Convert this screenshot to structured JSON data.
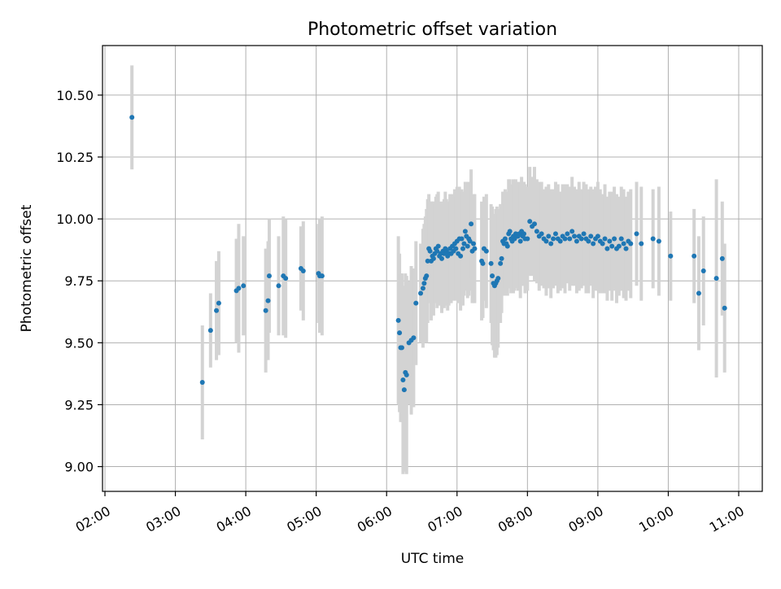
{
  "chart_data": {
    "type": "scatter",
    "title": "Photometric offset variation",
    "xlabel": "UTC time",
    "ylabel": "Photometric offset",
    "xlim": [
      "02:00",
      "11:00"
    ],
    "ylim": [
      8.9,
      10.7
    ],
    "x_ticks": [
      "02:00",
      "03:00",
      "04:00",
      "05:00",
      "06:00",
      "07:00",
      "08:00",
      "09:00",
      "10:00",
      "11:00"
    ],
    "y_ticks": [
      "9.00",
      "9.25",
      "9.50",
      "9.75",
      "10.00",
      "10.25",
      "10.50"
    ],
    "grid": true,
    "colors": {
      "point": "#1f77b4",
      "errorbar": "#d3d3d3",
      "grid": "#b0b0b0"
    },
    "series": [
      {
        "points": [
          [
            "02:23",
            10.41,
            0.21
          ],
          [
            "03:23",
            9.34,
            0.23
          ],
          [
            "03:30",
            9.55,
            0.15
          ],
          [
            "03:35",
            9.63,
            0.2
          ],
          [
            "03:37",
            9.66,
            0.21
          ],
          [
            "03:52",
            9.71,
            0.21
          ],
          [
            "03:54",
            9.72,
            0.26
          ],
          [
            "03:58",
            9.73,
            0.2
          ],
          [
            "04:17",
            9.63,
            0.25
          ],
          [
            "04:19",
            9.67,
            0.24
          ],
          [
            "04:20",
            9.77,
            0.23
          ],
          [
            "04:28",
            9.73,
            0.2
          ],
          [
            "04:32",
            9.77,
            0.24
          ],
          [
            "04:34",
            9.76,
            0.24
          ],
          [
            "04:47",
            9.8,
            0.17
          ],
          [
            "04:49",
            9.79,
            0.2
          ],
          [
            "05:02",
            9.78,
            0.2
          ],
          [
            "05:03",
            9.77,
            0.23
          ],
          [
            "05:05",
            9.77,
            0.24
          ],
          [
            "06:10",
            9.59,
            0.34
          ],
          [
            "06:11",
            9.54,
            0.32
          ],
          [
            "06:12",
            9.48,
            0.3
          ],
          [
            "06:13",
            9.48,
            0.3
          ],
          [
            "06:14",
            9.35,
            0.38
          ],
          [
            "06:15",
            9.31,
            0.33
          ],
          [
            "06:16",
            9.38,
            0.4
          ],
          [
            "06:17",
            9.37,
            0.4
          ],
          [
            "06:19",
            9.5,
            0.25
          ],
          [
            "06:21",
            9.51,
            0.3
          ],
          [
            "06:23",
            9.52,
            0.28
          ],
          [
            "06:25",
            9.66,
            0.25
          ],
          [
            "06:29",
            9.7,
            0.2
          ],
          [
            "06:31",
            9.72,
            0.24
          ],
          [
            "06:32",
            9.74,
            0.24
          ],
          [
            "06:33",
            9.76,
            0.25
          ],
          [
            "06:34",
            9.77,
            0.27
          ],
          [
            "06:35",
            9.83,
            0.25
          ],
          [
            "06:36",
            9.88,
            0.22
          ],
          [
            "06:37",
            9.87,
            0.2
          ],
          [
            "06:38",
            9.83,
            0.24
          ],
          [
            "06:39",
            9.85,
            0.22
          ],
          [
            "06:40",
            9.84,
            0.23
          ],
          [
            "06:41",
            9.86,
            0.2
          ],
          [
            "06:42",
            9.88,
            0.21
          ],
          [
            "06:43",
            9.87,
            0.23
          ],
          [
            "06:44",
            9.89,
            0.22
          ],
          [
            "06:45",
            9.85,
            0.2
          ],
          [
            "06:46",
            9.86,
            0.21
          ],
          [
            "06:47",
            9.84,
            0.22
          ],
          [
            "06:48",
            9.87,
            0.2
          ],
          [
            "06:49",
            9.86,
            0.22
          ],
          [
            "06:50",
            9.88,
            0.23
          ],
          [
            "06:51",
            9.87,
            0.21
          ],
          [
            "06:52",
            9.85,
            0.22
          ],
          [
            "06:53",
            9.86,
            0.21
          ],
          [
            "06:54",
            9.88,
            0.22
          ],
          [
            "06:55",
            9.86,
            0.2
          ],
          [
            "06:56",
            9.89,
            0.21
          ],
          [
            "06:57",
            9.87,
            0.2
          ],
          [
            "06:58",
            9.9,
            0.22
          ],
          [
            "06:59",
            9.88,
            0.21
          ],
          [
            "07:00",
            9.91,
            0.22
          ],
          [
            "07:01",
            9.86,
            0.2
          ],
          [
            "07:02",
            9.92,
            0.21
          ],
          [
            "07:03",
            9.85,
            0.22
          ],
          [
            "07:04",
            9.92,
            0.2
          ],
          [
            "07:05",
            9.88,
            0.23
          ],
          [
            "07:06",
            9.9,
            0.21
          ],
          [
            "07:07",
            9.95,
            0.2
          ],
          [
            "07:08",
            9.93,
            0.22
          ],
          [
            "07:09",
            9.89,
            0.21
          ],
          [
            "07:10",
            9.92,
            0.23
          ],
          [
            "07:11",
            9.91,
            0.2
          ],
          [
            "07:12",
            9.98,
            0.22
          ],
          [
            "07:13",
            9.87,
            0.21
          ],
          [
            "07:14",
            9.9,
            0.2
          ],
          [
            "07:15",
            9.88,
            0.22
          ],
          [
            "07:21",
            9.83,
            0.24
          ],
          [
            "07:22",
            9.82,
            0.22
          ],
          [
            "07:23",
            9.88,
            0.21
          ],
          [
            "07:25",
            9.87,
            0.23
          ],
          [
            "07:29",
            9.82,
            0.24
          ],
          [
            "07:30",
            9.77,
            0.28
          ],
          [
            "07:31",
            9.74,
            0.27
          ],
          [
            "07:32",
            9.73,
            0.29
          ],
          [
            "07:33",
            9.74,
            0.3
          ],
          [
            "07:34",
            9.75,
            0.3
          ],
          [
            "07:35",
            9.76,
            0.28
          ],
          [
            "07:37",
            9.82,
            0.24
          ],
          [
            "07:38",
            9.84,
            0.22
          ],
          [
            "07:39",
            9.91,
            0.2
          ],
          [
            "07:40",
            9.9,
            0.21
          ],
          [
            "07:41",
            9.92,
            0.2
          ],
          [
            "07:42",
            9.9,
            0.21
          ],
          [
            "07:43",
            9.89,
            0.2
          ],
          [
            "07:44",
            9.94,
            0.22
          ],
          [
            "07:45",
            9.95,
            0.21
          ],
          [
            "07:46",
            9.92,
            0.22
          ],
          [
            "07:47",
            9.91,
            0.2
          ],
          [
            "07:48",
            9.93,
            0.23
          ],
          [
            "07:49",
            9.92,
            0.21
          ],
          [
            "07:50",
            9.94,
            0.22
          ],
          [
            "07:51",
            9.93,
            0.2
          ],
          [
            "07:52",
            9.93,
            0.22
          ],
          [
            "07:53",
            9.94,
            0.21
          ],
          [
            "07:54",
            9.91,
            0.23
          ],
          [
            "07:55",
            9.95,
            0.22
          ],
          [
            "07:56",
            9.93,
            0.2
          ],
          [
            "07:57",
            9.94,
            0.21
          ],
          [
            "07:58",
            9.92,
            0.22
          ],
          [
            "08:00",
            9.92,
            0.21
          ],
          [
            "08:02",
            9.99,
            0.22
          ],
          [
            "08:04",
            9.97,
            0.2
          ],
          [
            "08:06",
            9.98,
            0.23
          ],
          [
            "08:08",
            9.95,
            0.21
          ],
          [
            "08:10",
            9.93,
            0.22
          ],
          [
            "08:12",
            9.94,
            0.21
          ],
          [
            "08:14",
            9.92,
            0.2
          ],
          [
            "08:16",
            9.91,
            0.22
          ],
          [
            "08:18",
            9.93,
            0.21
          ],
          [
            "08:20",
            9.9,
            0.22
          ],
          [
            "08:22",
            9.92,
            0.2
          ],
          [
            "08:24",
            9.94,
            0.21
          ],
          [
            "08:26",
            9.92,
            0.22
          ],
          [
            "08:28",
            9.91,
            0.2
          ],
          [
            "08:30",
            9.93,
            0.21
          ],
          [
            "08:32",
            9.92,
            0.22
          ],
          [
            "08:34",
            9.94,
            0.2
          ],
          [
            "08:36",
            9.92,
            0.21
          ],
          [
            "08:38",
            9.95,
            0.22
          ],
          [
            "08:40",
            9.93,
            0.2
          ],
          [
            "08:42",
            9.91,
            0.21
          ],
          [
            "08:44",
            9.93,
            0.22
          ],
          [
            "08:46",
            9.92,
            0.2
          ],
          [
            "08:48",
            9.94,
            0.21
          ],
          [
            "08:50",
            9.92,
            0.22
          ],
          [
            "08:52",
            9.91,
            0.21
          ],
          [
            "08:54",
            9.93,
            0.2
          ],
          [
            "08:56",
            9.9,
            0.22
          ],
          [
            "08:58",
            9.92,
            0.21
          ],
          [
            "09:00",
            9.93,
            0.22
          ],
          [
            "09:02",
            9.91,
            0.21
          ],
          [
            "09:04",
            9.9,
            0.2
          ],
          [
            "09:06",
            9.92,
            0.22
          ],
          [
            "09:08",
            9.88,
            0.21
          ],
          [
            "09:10",
            9.91,
            0.2
          ],
          [
            "09:12",
            9.89,
            0.22
          ],
          [
            "09:14",
            9.92,
            0.21
          ],
          [
            "09:16",
            9.88,
            0.22
          ],
          [
            "09:18",
            9.89,
            0.2
          ],
          [
            "09:20",
            9.92,
            0.21
          ],
          [
            "09:22",
            9.9,
            0.22
          ],
          [
            "09:24",
            9.88,
            0.21
          ],
          [
            "09:26",
            9.91,
            0.2
          ],
          [
            "09:28",
            9.9,
            0.22
          ],
          [
            "09:33",
            9.94,
            0.21
          ],
          [
            "09:37",
            9.9,
            0.23
          ],
          [
            "09:47",
            9.92,
            0.2
          ],
          [
            "09:52",
            9.91,
            0.22
          ],
          [
            "10:02",
            9.85,
            0.18
          ],
          [
            "10:22",
            9.85,
            0.19
          ],
          [
            "10:26",
            9.7,
            0.23
          ],
          [
            "10:30",
            9.79,
            0.22
          ],
          [
            "10:41",
            9.76,
            0.4
          ],
          [
            "10:46",
            9.84,
            0.23
          ],
          [
            "10:48",
            9.64,
            0.26
          ]
        ]
      }
    ]
  }
}
